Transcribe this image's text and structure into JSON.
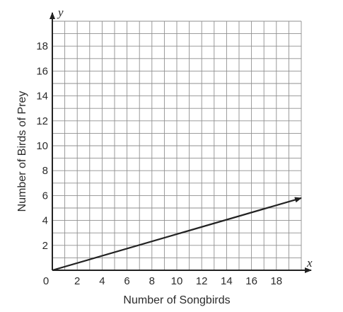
{
  "chart_data": {
    "type": "line",
    "xlabel": "Number of Songbirds",
    "ylabel": "Number of Birds of Prey",
    "x_axis_var": "x",
    "y_axis_var": "y",
    "xlim": [
      0,
      20
    ],
    "ylim": [
      0,
      20
    ],
    "grid": true,
    "grid_step": 1,
    "xticks": [
      0,
      2,
      4,
      6,
      8,
      10,
      12,
      14,
      16,
      18
    ],
    "yticks": [
      2,
      4,
      6,
      8,
      10,
      12,
      14,
      16,
      18
    ],
    "origin_label": "0",
    "series": [
      {
        "x": [
          0,
          20
        ],
        "y": [
          0,
          5.8
        ],
        "arrow_end": true
      }
    ]
  }
}
